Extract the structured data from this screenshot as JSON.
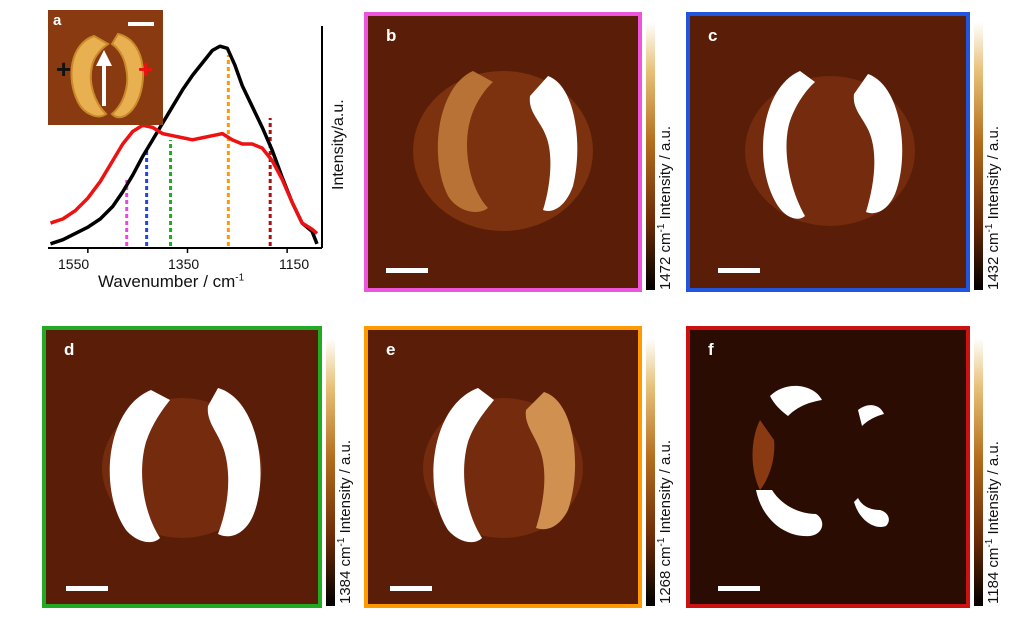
{
  "spectrum": {
    "chart_data": {
      "type": "line",
      "xlabel": "Wavenumber / cm",
      "xlabel_sup": "-1",
      "ylabel": "Intensity/a.u.",
      "xlim": [
        1630,
        1080
      ],
      "xticks": [
        "1550",
        "1350",
        "1150"
      ],
      "series": [
        {
          "color": "#000000",
          "x": [
            1625,
            1600,
            1575,
            1550,
            1525,
            1500,
            1480,
            1460,
            1440,
            1420,
            1400,
            1380,
            1360,
            1340,
            1320,
            1300,
            1285,
            1270,
            1255,
            1240,
            1220,
            1200,
            1180,
            1160,
            1140,
            1120,
            1100,
            1090
          ],
          "y": [
            0.02,
            0.04,
            0.07,
            0.1,
            0.14,
            0.2,
            0.27,
            0.35,
            0.44,
            0.52,
            0.6,
            0.68,
            0.76,
            0.83,
            0.89,
            0.95,
            0.97,
            0.96,
            0.88,
            0.78,
            0.68,
            0.58,
            0.47,
            0.34,
            0.22,
            0.12,
            0.08,
            0.02
          ]
        },
        {
          "color": "#ee1111",
          "x": [
            1625,
            1600,
            1575,
            1550,
            1525,
            1500,
            1480,
            1460,
            1440,
            1420,
            1400,
            1380,
            1360,
            1340,
            1320,
            1300,
            1280,
            1260,
            1240,
            1220,
            1200,
            1180,
            1160,
            1140,
            1120,
            1100,
            1090
          ],
          "y": [
            0.12,
            0.14,
            0.18,
            0.24,
            0.32,
            0.42,
            0.5,
            0.56,
            0.59,
            0.58,
            0.55,
            0.54,
            0.53,
            0.52,
            0.53,
            0.54,
            0.55,
            0.52,
            0.5,
            0.5,
            0.48,
            0.42,
            0.33,
            0.22,
            0.12,
            0.09,
            0.07
          ]
        }
      ],
      "markers": [
        {
          "x": 1472,
          "color": "#ee44dd"
        },
        {
          "x": 1432,
          "color": "#2244dd"
        },
        {
          "x": 1384,
          "color": "#22aa22"
        },
        {
          "x": 1268,
          "color": "#ff9900"
        },
        {
          "x": 1184,
          "color": "#aa1111"
        }
      ]
    },
    "inset": {
      "label": "a",
      "plus_left": "+",
      "plus_right": "+"
    }
  },
  "panels": [
    {
      "label": "b",
      "cbar_text": "1472 cm",
      "cbar_sup": "-1",
      "cbar_suffix": " Intensity / a.u.",
      "border": "#ee55dd"
    },
    {
      "label": "c",
      "cbar_text": "1432 cm",
      "cbar_sup": "-1",
      "cbar_suffix": " Intensity / a.u.",
      "border": "#2255dd"
    },
    {
      "label": "d",
      "cbar_text": "1384 cm",
      "cbar_sup": "-1",
      "cbar_suffix": " Intensity / a.u.",
      "border": "#22aa22"
    },
    {
      "label": "e",
      "cbar_text": "1268 cm",
      "cbar_sup": "-1",
      "cbar_suffix": " Intensity / a.u.",
      "border": "#ff9900"
    },
    {
      "label": "f",
      "cbar_text": "1184 cm",
      "cbar_sup": "-1",
      "cbar_suffix": " Intensity / a.u.",
      "border": "#cc1111"
    }
  ]
}
